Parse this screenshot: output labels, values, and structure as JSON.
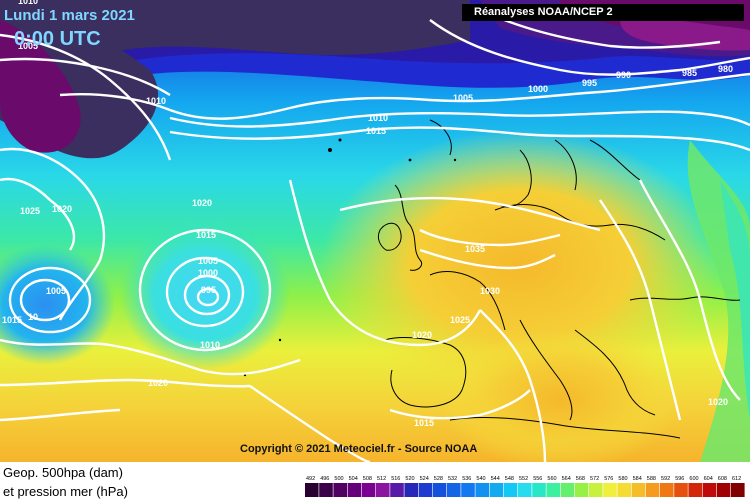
{
  "header": {
    "date": "Lundi 1 mars 2021",
    "time": "0:00 UTC",
    "source": "Réanalyses NOAA/NCEP 2",
    "copyright": "Copyright © 2021 Meteociel.fr - Source NOAA"
  },
  "legend": {
    "line1": "Geop. 500hpa (dam)",
    "line2": "et pression mer (hPa)",
    "scale_values": [
      "492",
      "496",
      "500",
      "504",
      "508",
      "512",
      "516",
      "520",
      "524",
      "528",
      "532",
      "536",
      "540",
      "544",
      "548",
      "552",
      "556",
      "560",
      "564",
      "568",
      "572",
      "576",
      "580",
      "584",
      "588",
      "592",
      "596",
      "600",
      "604",
      "608",
      "612"
    ],
    "scale_colors": [
      "#2a0033",
      "#3c0048",
      "#500060",
      "#66007a",
      "#7a0090",
      "#8a14a0",
      "#5a1aa8",
      "#2828b8",
      "#1e3ccd",
      "#1450dc",
      "#1464e6",
      "#1478f0",
      "#1491f0",
      "#14aaf0",
      "#14c8f5",
      "#28dcf0",
      "#28e6c8",
      "#3cf0a0",
      "#64f06e",
      "#96f046",
      "#c8f03c",
      "#f0f03c",
      "#f5dc32",
      "#f5be28",
      "#f59b1e",
      "#f07814",
      "#e6500f",
      "#d2280a",
      "#be0a0a",
      "#a00000",
      "#800000"
    ]
  },
  "map": {
    "pressure_labels": [
      "1010",
      "1005",
      "1010",
      "1005",
      "1000",
      "995",
      "990",
      "985",
      "980",
      "1010",
      "1015",
      "1025",
      "1020",
      "1020",
      "1015",
      "1005",
      "1000",
      "995",
      "1005",
      "1015",
      "1010",
      "1010",
      "1020",
      "1035",
      "1030",
      "1025",
      "1020",
      "1015",
      "1020"
    ],
    "colors": {
      "cold_core": "#3a2f5e",
      "deep_low": "#6a0a6a",
      "sea_level_isobar": "#ffffff",
      "coastline": "#000000"
    }
  }
}
